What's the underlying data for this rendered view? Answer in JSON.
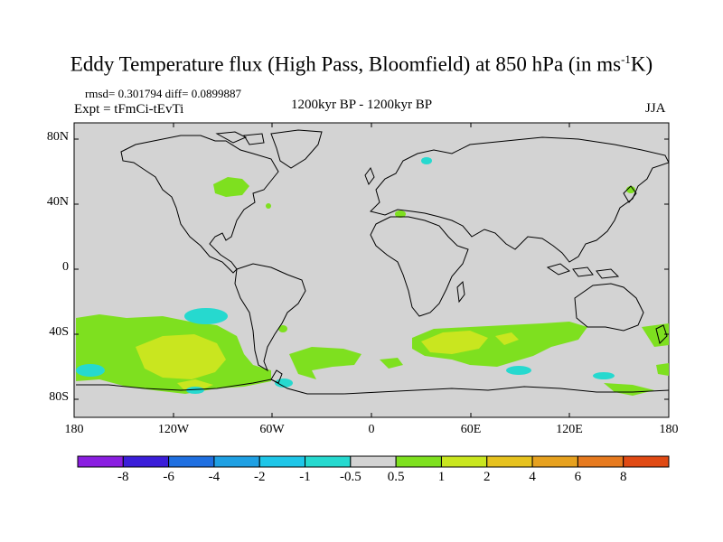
{
  "map": {
    "title_main": "Eddy Temperature flux (High Pass, Bloomfield) at 850 hPa (in ms",
    "title_sup": "-1",
    "title_end": "K)",
    "rmsd_text": "rmsd= 0.301794 diff= 0.0899887",
    "expt_text": "Expt = tFmCi-tEvTi",
    "period_text": "1200kyr BP - 1200kyr BP",
    "season_text": "JJA",
    "lat_labels": [
      "80N",
      "40N",
      "0",
      "40S",
      "80S"
    ],
    "lon_labels": [
      "180",
      "120W",
      "60W",
      "0",
      "60E",
      "120E",
      "180"
    ]
  },
  "colorbar": {
    "colors": [
      "#8a1ee0",
      "#3b1ed9",
      "#1f6fe0",
      "#1fa0e3",
      "#1fc6e8",
      "#26d9cf",
      "#d3d3d3",
      "#7ee01f",
      "#c9e61f",
      "#e6c21f",
      "#e6a11f",
      "#e67a1f",
      "#e04a14"
    ],
    "labels": [
      "-8",
      "-6",
      "-4",
      "-2",
      "-1",
      "-0.5",
      "0.5",
      "1",
      "2",
      "4",
      "6",
      "8"
    ]
  },
  "palette": {
    "background": "#d3d3d3",
    "green": "#7ee01f",
    "yellow": "#c9e61f",
    "cyan": "#26d9cf",
    "coast": "#000000"
  }
}
